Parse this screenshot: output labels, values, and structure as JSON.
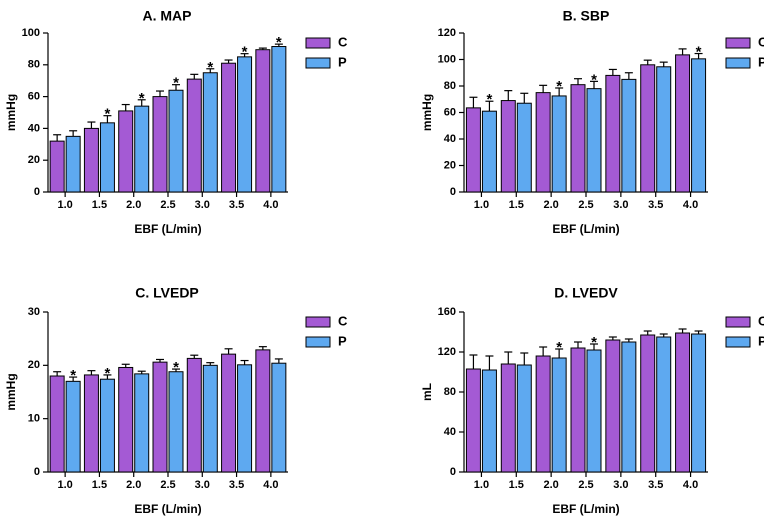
{
  "colors": {
    "C": "#a45ad4",
    "P": "#5ea9f0"
  },
  "chart_data": [
    {
      "type": "bar",
      "title": "A. MAP",
      "xlabel": "EBF (L/min)",
      "ylabel": "mmHg",
      "ylim": [
        0,
        100
      ],
      "yticks": [
        0,
        20,
        40,
        60,
        80,
        100
      ],
      "categories": [
        "1.0",
        "1.5",
        "2.0",
        "2.5",
        "3.0",
        "3.5",
        "4.0"
      ],
      "legend": [
        "C",
        "P"
      ],
      "series": [
        {
          "name": "C",
          "values": [
            32,
            40,
            51,
            60,
            71,
            81,
            89.5
          ],
          "errors": [
            4,
            4,
            4,
            3.5,
            3,
            2,
            1
          ]
        },
        {
          "name": "P",
          "values": [
            35,
            43.5,
            54,
            64,
            75,
            85,
            91.5
          ],
          "errors": [
            3.5,
            4.5,
            4,
            3.5,
            2.5,
            2,
            1.5
          ]
        }
      ],
      "significance": [
        "",
        "*",
        "*",
        "*",
        "*",
        "*",
        "*"
      ]
    },
    {
      "type": "bar",
      "title": "B. SBP",
      "xlabel": "EBF (L/min)",
      "ylabel": "mmHg",
      "ylim": [
        0,
        120
      ],
      "yticks": [
        0,
        20,
        40,
        60,
        80,
        100,
        120
      ],
      "categories": [
        "1.0",
        "1.5",
        "2.0",
        "2.5",
        "3.0",
        "3.5",
        "4.0"
      ],
      "legend": [
        "C",
        "P"
      ],
      "series": [
        {
          "name": "C",
          "values": [
            63.5,
            69,
            75,
            81,
            88,
            96,
            103.5
          ],
          "errors": [
            8,
            7.5,
            5.5,
            4.5,
            4.5,
            3.5,
            4.5
          ]
        },
        {
          "name": "P",
          "values": [
            61,
            67,
            72.5,
            78,
            85,
            94.5,
            100.5
          ],
          "errors": [
            7.5,
            7.5,
            6,
            5.5,
            5,
            3.5,
            4
          ]
        }
      ],
      "significance": [
        "*",
        "",
        "*",
        "*",
        "",
        "",
        "*"
      ]
    },
    {
      "type": "bar",
      "title": "C. LVEDP",
      "xlabel": "EBF (L/min)",
      "ylabel": "mmHg",
      "ylim": [
        0,
        30
      ],
      "yticks": [
        0,
        10,
        20,
        30
      ],
      "categories": [
        "1.0",
        "1.5",
        "2.0",
        "2.5",
        "3.0",
        "3.5",
        "4.0"
      ],
      "legend": [
        "C",
        "P"
      ],
      "series": [
        {
          "name": "C",
          "values": [
            18,
            18.2,
            19.6,
            20.6,
            21.3,
            22.1,
            22.9
          ],
          "errors": [
            0.8,
            0.8,
            0.6,
            0.5,
            0.6,
            1,
            0.6
          ]
        },
        {
          "name": "P",
          "values": [
            17,
            17.4,
            18.4,
            18.8,
            20,
            20.1,
            20.4
          ],
          "errors": [
            0.8,
            0.8,
            0.5,
            0.5,
            0.5,
            0.8,
            0.8
          ]
        }
      ],
      "significance": [
        "*",
        "*",
        "",
        "*",
        "",
        "",
        ""
      ]
    },
    {
      "type": "bar",
      "title": "D. LVEDV",
      "xlabel": "EBF (L/min)",
      "ylabel": "mL",
      "ylim": [
        0,
        160
      ],
      "yticks": [
        0,
        40,
        80,
        120,
        160
      ],
      "categories": [
        "1.0",
        "1.5",
        "2.0",
        "2.5",
        "3.0",
        "3.5",
        "4.0"
      ],
      "legend": [
        "C",
        "P"
      ],
      "series": [
        {
          "name": "C",
          "values": [
            103,
            108,
            116,
            124,
            132,
            137,
            139
          ],
          "errors": [
            14,
            12,
            9,
            6,
            3,
            4,
            4
          ]
        },
        {
          "name": "P",
          "values": [
            102,
            107,
            114,
            122,
            130,
            135,
            138
          ],
          "errors": [
            14,
            12,
            9,
            6,
            3,
            3,
            3
          ]
        }
      ],
      "significance": [
        "",
        "",
        "*",
        "*",
        "",
        "",
        ""
      ]
    }
  ]
}
